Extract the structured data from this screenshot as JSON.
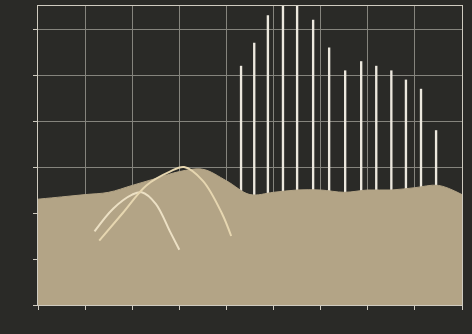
{
  "chart_data": {
    "type": "line",
    "xlim": [
      0,
      9
    ],
    "ylim": [
      0,
      6.5
    ],
    "xticks": [
      0,
      1,
      2,
      3,
      4,
      5,
      6,
      7,
      8,
      9
    ],
    "yticks": [
      0,
      1,
      2,
      3,
      4,
      5,
      6
    ],
    "grid": true,
    "tick_labels": false,
    "series": [
      {
        "type": "area",
        "color": "#b3a486",
        "x": [
          0,
          0.5,
          1,
          1.5,
          2,
          2.5,
          3,
          3.5,
          4,
          4.5,
          5,
          5.5,
          6,
          6.5,
          7,
          7.5,
          8,
          8.5,
          9
        ],
        "values": [
          2.3,
          2.35,
          2.4,
          2.45,
          2.6,
          2.75,
          2.9,
          2.95,
          2.7,
          2.4,
          2.45,
          2.5,
          2.5,
          2.45,
          2.5,
          2.5,
          2.55,
          2.6,
          2.4
        ]
      },
      {
        "type": "line",
        "color": "#ece0c4",
        "x": [
          1.2,
          1.6,
          2.0,
          2.2,
          2.5,
          2.8,
          3.0
        ],
        "values": [
          1.6,
          2.1,
          2.4,
          2.45,
          2.2,
          1.6,
          1.2
        ]
      },
      {
        "type": "line",
        "color": "#e6d6b0",
        "x": [
          1.3,
          1.8,
          2.3,
          2.8,
          3.1,
          3.5,
          3.9,
          4.1
        ],
        "values": [
          1.4,
          2.0,
          2.6,
          2.9,
          3.0,
          2.7,
          2.0,
          1.5
        ]
      },
      {
        "type": "bar",
        "color": "#ece8de",
        "x": [
          4.31,
          4.59,
          4.88,
          5.2,
          5.5,
          5.84,
          6.18,
          6.52,
          6.86,
          7.18,
          7.5,
          7.81,
          8.13,
          8.45
        ],
        "values": [
          5.2,
          5.7,
          6.3,
          6.5,
          6.5,
          6.2,
          5.6,
          5.1,
          5.3,
          5.2,
          5.1,
          4.9,
          4.7,
          3.8
        ]
      }
    ]
  }
}
